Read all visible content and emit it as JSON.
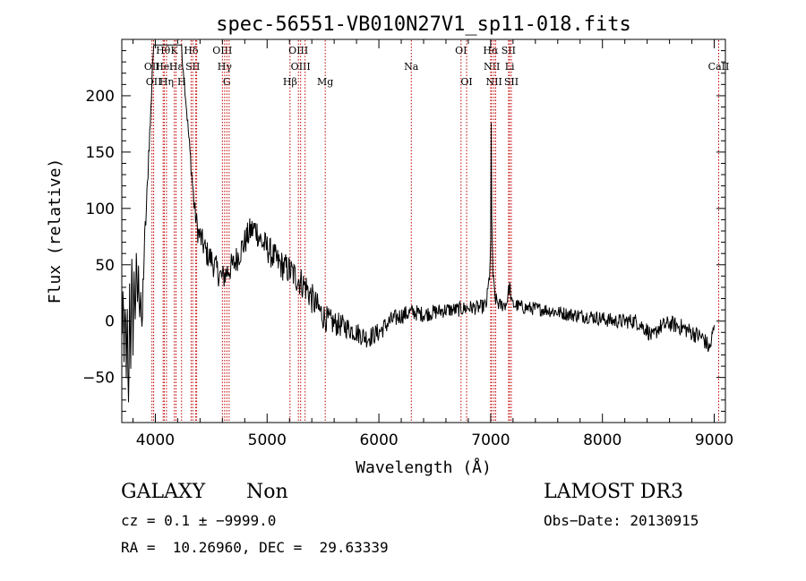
{
  "chart_data": {
    "type": "line",
    "title": "spec-56551-VB010N27V1_sp11-018.fits",
    "xlabel": "Wavelength (Å)",
    "ylabel": "Flux (relative)",
    "xlim": [
      3700,
      9100
    ],
    "ylim": [
      -90,
      250
    ],
    "xticks": [
      {
        "v": 4000,
        "label": "4000"
      },
      {
        "v": 5000,
        "label": "5000"
      },
      {
        "v": 6000,
        "label": "6000"
      },
      {
        "v": 7000,
        "label": "7000"
      },
      {
        "v": 8000,
        "label": "8000"
      },
      {
        "v": 9000,
        "label": "9000"
      }
    ],
    "yticks": [
      {
        "v": -50,
        "label": "−50"
      },
      {
        "v": 0,
        "label": "0"
      },
      {
        "v": 50,
        "label": "50"
      },
      {
        "v": 100,
        "label": "100"
      },
      {
        "v": 150,
        "label": "150"
      },
      {
        "v": 200,
        "label": "200"
      }
    ],
    "grid": false,
    "line_color": "#000000",
    "marker_color": "#c00000",
    "line_markers": [
      {
        "x": 3970,
        "label": "OII",
        "row": 2
      },
      {
        "x": 3985,
        "label": "OII",
        "row": 3
      },
      {
        "x": 4070,
        "label": "Hθ",
        "row": 1
      },
      {
        "x": 4080,
        "label": "Heι",
        "row": 2
      },
      {
        "x": 4100,
        "label": "Hη",
        "row": 3
      },
      {
        "x": 4170,
        "label": "K",
        "row": 1
      },
      {
        "x": 4185,
        "label": "Hε",
        "row": 2
      },
      {
        "x": 4235,
        "label": "H",
        "row": 3
      },
      {
        "x": 4320,
        "label": "Hδ",
        "row": 1
      },
      {
        "x": 4335,
        "label": "SII",
        "row": 2
      },
      {
        "x": 4360,
        "label": "",
        "row": 0
      },
      {
        "x": 4370,
        "label": "",
        "row": 0
      },
      {
        "x": 4600,
        "label": "OIII",
        "row": 1
      },
      {
        "x": 4620,
        "label": "Hγ",
        "row": 2
      },
      {
        "x": 4640,
        "label": "G",
        "row": 3
      },
      {
        "x": 4660,
        "label": "",
        "row": 0
      },
      {
        "x": 5205,
        "label": "Hβ",
        "row": 3
      },
      {
        "x": 5280,
        "label": "OIII",
        "row": 1
      },
      {
        "x": 5300,
        "label": "OIII",
        "row": 2
      },
      {
        "x": 5340,
        "label": "",
        "row": 0
      },
      {
        "x": 5520,
        "label": "Mg",
        "row": 3
      },
      {
        "x": 6290,
        "label": "Na",
        "row": 2
      },
      {
        "x": 6735,
        "label": "OI",
        "row": 1
      },
      {
        "x": 6785,
        "label": "OI",
        "row": 3
      },
      {
        "x": 7000,
        "label": "Hα",
        "row": 1
      },
      {
        "x": 7010,
        "label": "NII",
        "row": 2
      },
      {
        "x": 7030,
        "label": "NII",
        "row": 3
      },
      {
        "x": 7045,
        "label": "",
        "row": 0
      },
      {
        "x": 7160,
        "label": "SII",
        "row": 1
      },
      {
        "x": 7170,
        "label": "Li",
        "row": 2
      },
      {
        "x": 7185,
        "label": "SII",
        "row": 3
      },
      {
        "x": 9040,
        "label": "CaII",
        "row": 2
      }
    ],
    "spectrum": {
      "anchors": [
        [
          3700,
          -20
        ],
        [
          3710,
          20
        ],
        [
          3720,
          -45
        ],
        [
          3730,
          25
        ],
        [
          3740,
          -60
        ],
        [
          3750,
          0
        ],
        [
          3760,
          -85
        ],
        [
          3770,
          30
        ],
        [
          3780,
          -30
        ],
        [
          3790,
          40
        ],
        [
          3800,
          -15
        ],
        [
          3810,
          35
        ],
        [
          3820,
          10
        ],
        [
          3830,
          45
        ],
        [
          3840,
          20
        ],
        [
          3850,
          38
        ],
        [
          3860,
          15
        ],
        [
          3870,
          30
        ],
        [
          3880,
          -20
        ],
        [
          3890,
          30
        ],
        [
          3900,
          60
        ],
        [
          3910,
          80
        ],
        [
          3920,
          100
        ],
        [
          3930,
          120
        ],
        [
          3940,
          150
        ],
        [
          3955,
          175
        ],
        [
          3965,
          200
        ],
        [
          3975,
          230
        ],
        [
          3990,
          245
        ],
        [
          4100,
          245
        ],
        [
          4200,
          243
        ],
        [
          4230,
          240
        ],
        [
          4250,
          225
        ],
        [
          4270,
          200
        ],
        [
          4290,
          175
        ],
        [
          4310,
          150
        ],
        [
          4330,
          125
        ],
        [
          4350,
          100
        ],
        [
          4380,
          80
        ],
        [
          4420,
          70
        ],
        [
          4460,
          60
        ],
        [
          4500,
          55
        ],
        [
          4550,
          45
        ],
        [
          4600,
          38
        ],
        [
          4650,
          45
        ],
        [
          4700,
          50
        ],
        [
          4750,
          60
        ],
        [
          4800,
          70
        ],
        [
          4850,
          80
        ],
        [
          4900,
          82
        ],
        [
          4950,
          70
        ],
        [
          5000,
          65
        ],
        [
          5050,
          58
        ],
        [
          5100,
          52
        ],
        [
          5150,
          48
        ],
        [
          5200,
          45
        ],
        [
          5250,
          40
        ],
        [
          5300,
          35
        ],
        [
          5350,
          30
        ],
        [
          5400,
          20
        ],
        [
          5450,
          12
        ],
        [
          5500,
          5
        ],
        [
          5550,
          0
        ],
        [
          5600,
          -2
        ],
        [
          5700,
          -5
        ],
        [
          5800,
          -10
        ],
        [
          5900,
          -15
        ],
        [
          6000,
          -10
        ],
        [
          6100,
          0
        ],
        [
          6200,
          5
        ],
        [
          6300,
          8
        ],
        [
          6400,
          6
        ],
        [
          6500,
          8
        ],
        [
          6600,
          10
        ],
        [
          6700,
          10
        ],
        [
          6800,
          12
        ],
        [
          6900,
          12
        ],
        [
          6960,
          14
        ],
        [
          6990,
          40
        ],
        [
          7000,
          70
        ],
        [
          7005,
          170
        ],
        [
          7010,
          90
        ],
        [
          7020,
          40
        ],
        [
          7040,
          20
        ],
        [
          7080,
          14
        ],
        [
          7140,
          15
        ],
        [
          7170,
          32
        ],
        [
          7190,
          15
        ],
        [
          7300,
          12
        ],
        [
          7500,
          10
        ],
        [
          7700,
          6
        ],
        [
          7900,
          4
        ],
        [
          8100,
          0
        ],
        [
          8300,
          0
        ],
        [
          8400,
          -8
        ],
        [
          8450,
          -15
        ],
        [
          8500,
          -6
        ],
        [
          8600,
          -2
        ],
        [
          8700,
          -5
        ],
        [
          8800,
          -10
        ],
        [
          8900,
          -15
        ],
        [
          8960,
          -25
        ],
        [
          9000,
          -5
        ]
      ],
      "noise": [
        [
          3700,
          25
        ],
        [
          3900,
          15
        ],
        [
          4000,
          3
        ],
        [
          4240,
          4
        ],
        [
          4400,
          12
        ],
        [
          5400,
          14
        ],
        [
          5700,
          10
        ],
        [
          6400,
          7
        ],
        [
          7500,
          6
        ],
        [
          9000,
          8
        ]
      ],
      "step": 5,
      "box_segment": {
        "x": [
          3990,
          4235
        ],
        "y": 245
      }
    }
  },
  "footer": {
    "object_type": "GALAXY",
    "subclass": "Non",
    "survey": "LAMOST DR3",
    "cz_line": "cz = 0.1 ± −9999.0",
    "obs_date_line": "Obs−Date: 20130915",
    "radec_line": "RA =  10.26960, DEC =  29.63339"
  }
}
